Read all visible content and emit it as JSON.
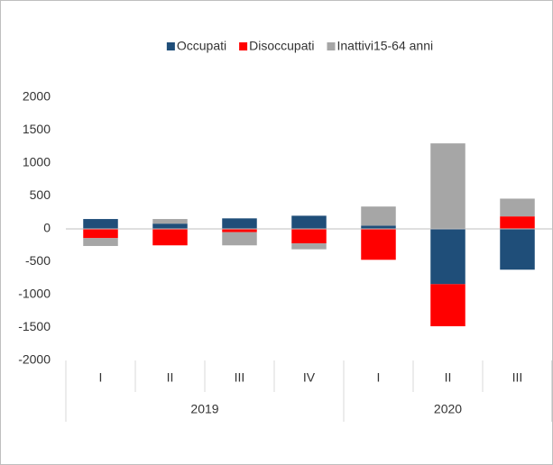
{
  "chart_data": {
    "type": "bar",
    "stacked": true,
    "groups": [
      {
        "label": "2019",
        "categories": [
          "I",
          "II",
          "III",
          "IV"
        ]
      },
      {
        "label": "2020",
        "categories": [
          "I",
          "II",
          "III"
        ]
      }
    ],
    "series": [
      {
        "name": "Occupati",
        "color": "#1f4e79",
        "values": [
          150,
          80,
          160,
          200,
          50,
          -840,
          -620
        ]
      },
      {
        "name": "Disoccupati",
        "color": "#ff0000",
        "values": [
          -140,
          -250,
          -50,
          -220,
          -470,
          -640,
          190
        ]
      },
      {
        "name": "Inattivi15-64 anni",
        "color": "#a6a6a6",
        "values": [
          -120,
          70,
          -200,
          -90,
          290,
          1300,
          270
        ]
      }
    ],
    "ylim": [
      -2000,
      2000
    ],
    "yticks": [
      -2000,
      -1500,
      -1000,
      -500,
      0,
      500,
      1000,
      1500,
      2000
    ],
    "grid": false,
    "legend": "top"
  }
}
